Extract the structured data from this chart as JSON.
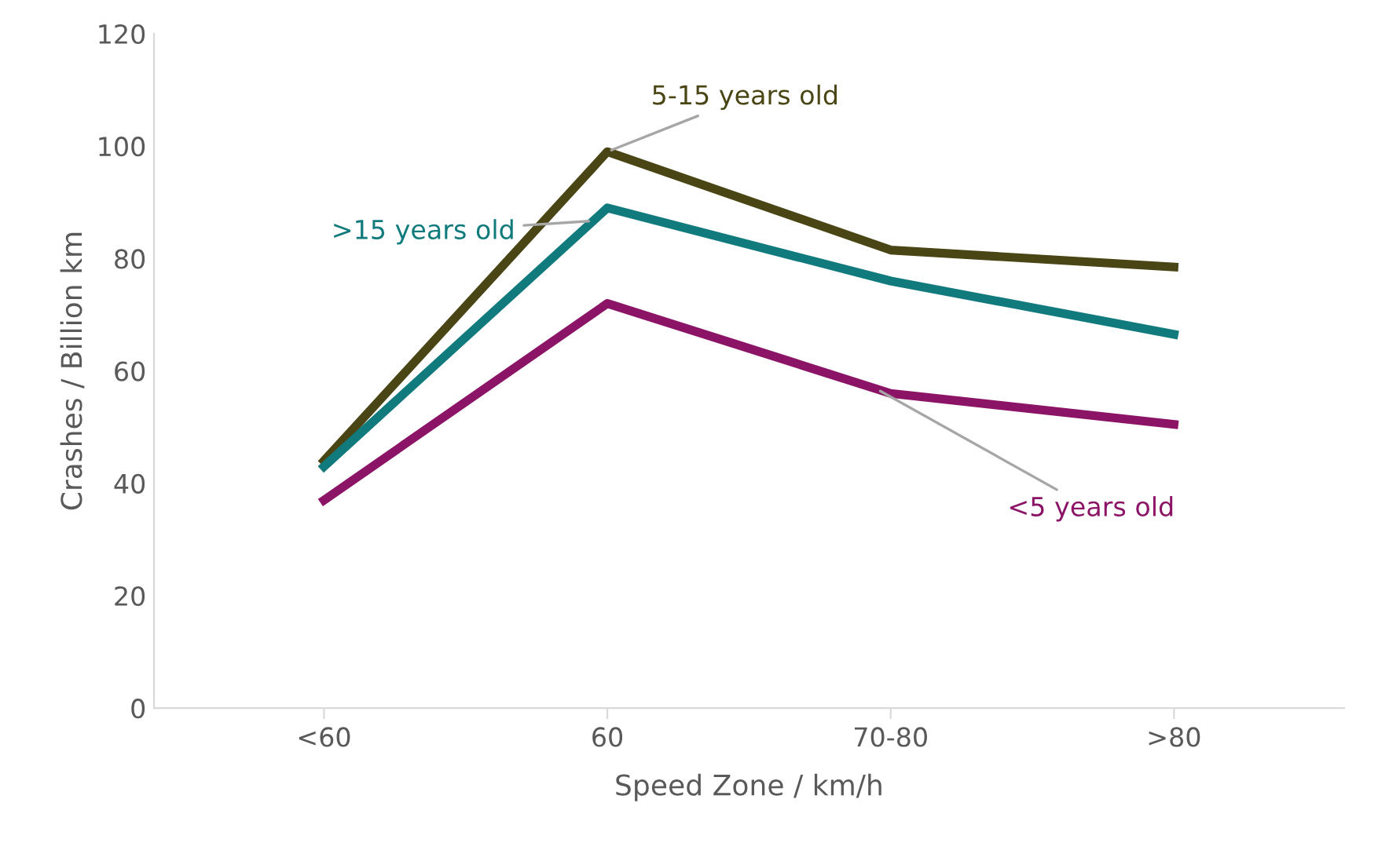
{
  "chart_data": {
    "type": "line",
    "xlabel": "Speed Zone / km/h",
    "ylabel": "Crashes / Billion km",
    "categories": [
      "<60",
      "60",
      "70-80",
      ">80"
    ],
    "series": [
      {
        "name": "5-15 years old",
        "color": "#4a4514",
        "values": [
          44,
          99,
          81.5,
          78.5
        ]
      },
      {
        "name": ">15 years old",
        "color": "#107a7c",
        "values": [
          43,
          89,
          76,
          66.5
        ]
      },
      {
        "name": "<5 years old",
        "color": "#8c1466",
        "values": [
          37,
          72,
          56,
          50.5
        ]
      }
    ],
    "ylim": [
      0,
      120
    ],
    "yticks": [
      0,
      20,
      40,
      60,
      80,
      100,
      120
    ],
    "grid": false,
    "legend": false,
    "marker": "none",
    "line_style": "solid"
  }
}
